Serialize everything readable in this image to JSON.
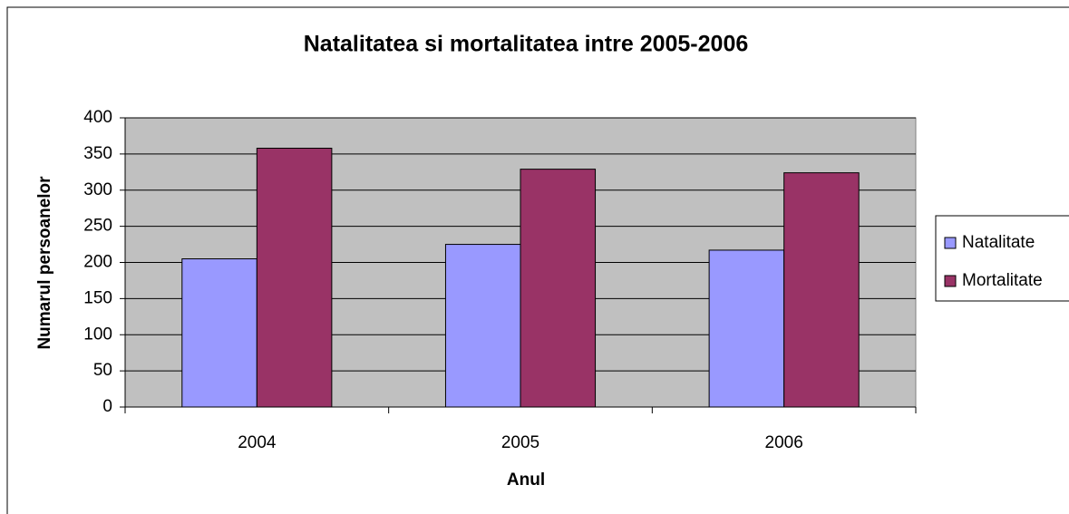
{
  "chart_data": {
    "type": "bar",
    "title": "Natalitatea si mortalitatea intre 2005-2006",
    "x_label": "Anul",
    "y_label": "Numarul persoanelor",
    "categories": [
      "2004",
      "2005",
      "2006"
    ],
    "series": [
      {
        "name": "Natalitate",
        "color": "#9999ff",
        "values": [
          205,
          225,
          217
        ]
      },
      {
        "name": "Mortalitate",
        "color": "#993366",
        "values": [
          358,
          329,
          324
        ]
      }
    ],
    "ylim": [
      0,
      400
    ],
    "yticks": [
      0,
      50,
      100,
      150,
      200,
      250,
      300,
      350,
      400
    ],
    "grid": true,
    "legend": "right",
    "plot_background": "#c0c0c0"
  }
}
